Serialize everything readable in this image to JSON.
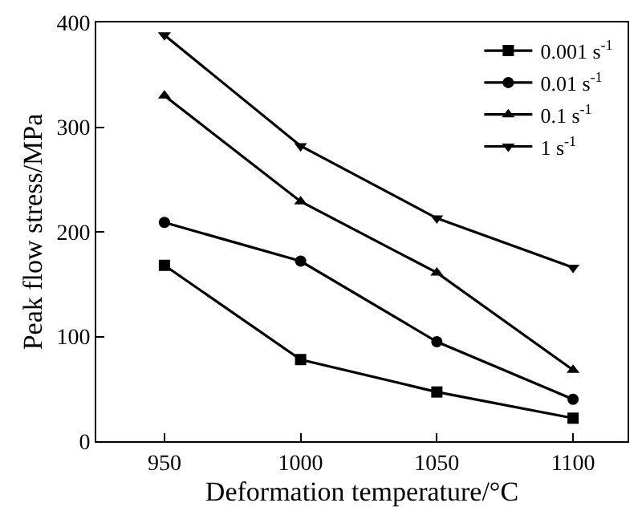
{
  "chart_data": {
    "type": "line",
    "xlabel": "Deformation temperature/°C",
    "ylabel": "Peak flow stress/MPa",
    "x": [
      950,
      1000,
      1050,
      1100
    ],
    "series": [
      {
        "name": "0.001 s$^{-1}$",
        "color": "#000000",
        "marker": "square",
        "values": [
          168,
          78,
          47,
          22
        ]
      },
      {
        "name": "0.01 s$^{-1}$",
        "color": "#000000",
        "marker": "circle",
        "values": [
          209,
          172,
          95,
          40
        ]
      },
      {
        "name": "0.1 s$^{-1}$",
        "color": "#000000",
        "marker": "triangle",
        "values": [
          330,
          229,
          161,
          68
        ]
      },
      {
        "name": "1 s$^{-1}$",
        "color": "#000000",
        "marker": "triangle-down",
        "values": [
          388,
          282,
          213,
          166
        ]
      }
    ],
    "xlim": [
      925,
      1120
    ],
    "xticks": [
      950,
      1000,
      1050,
      1100
    ],
    "ylim": [
      0,
      400
    ],
    "yticks": [
      0,
      100,
      200,
      300,
      400
    ],
    "legend": "top right",
    "line_style": "solid"
  }
}
